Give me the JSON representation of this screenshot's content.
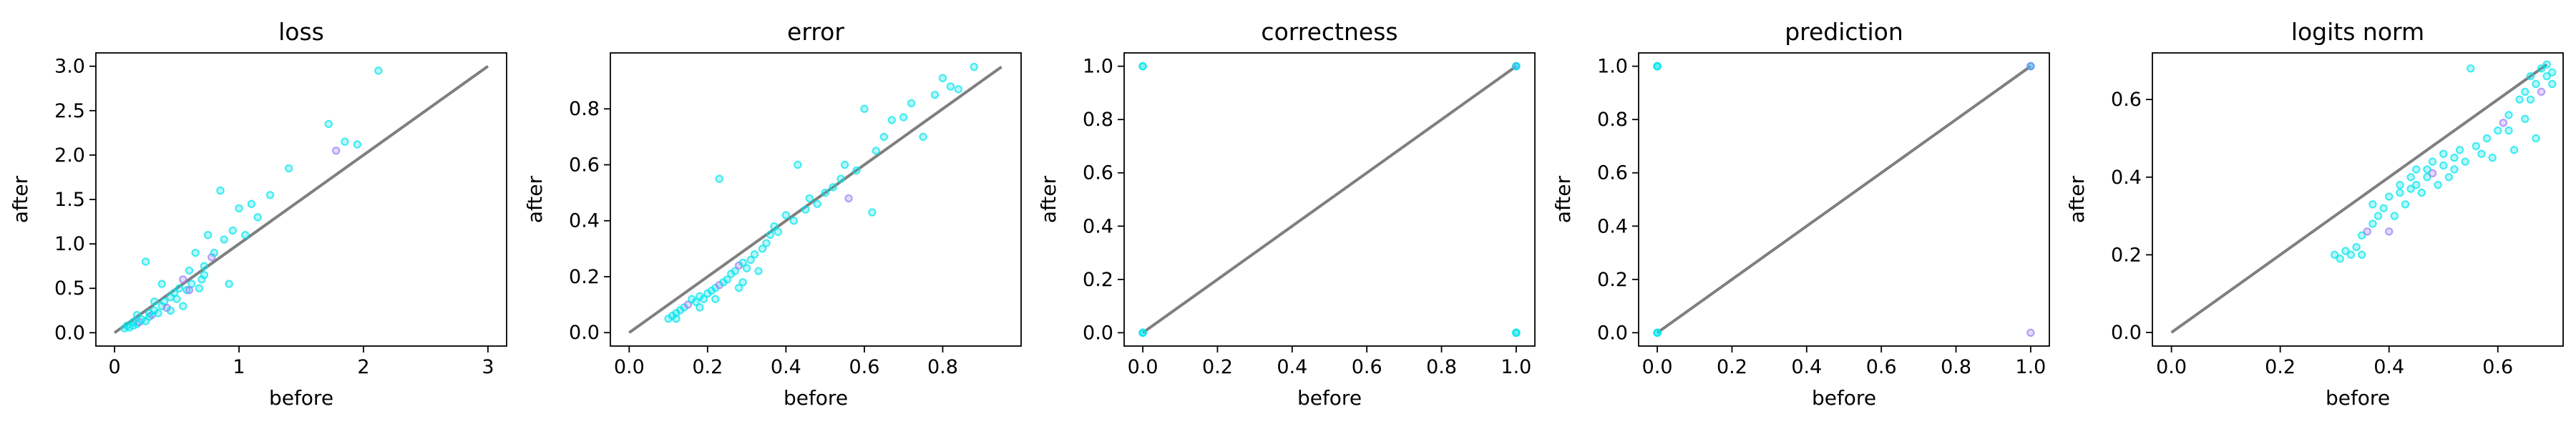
{
  "chart_data": [
    {
      "type": "scatter",
      "title": "loss",
      "xlabel": "before",
      "ylabel": "after",
      "xlim": [
        -0.15,
        3.15
      ],
      "ylim": [
        -0.15,
        3.15
      ],
      "xticks": [
        0,
        1,
        2,
        3
      ],
      "xtick_labels": [
        "0",
        "1",
        "2",
        "3"
      ],
      "yticks": [
        0,
        0.5,
        1,
        1.5,
        2,
        2.5,
        3
      ],
      "ytick_labels": [
        "0.0",
        "0.5",
        "1.0",
        "1.5",
        "2.0",
        "2.5",
        "3.0"
      ],
      "diagonal": [
        [
          0,
          0
        ],
        [
          3,
          3
        ]
      ],
      "grid": false,
      "points": [
        [
          0.08,
          0.05,
          0
        ],
        [
          0.12,
          0.06,
          0
        ],
        [
          0.15,
          0.08,
          0
        ],
        [
          0.18,
          0.1,
          0
        ],
        [
          0.2,
          0.12,
          1
        ],
        [
          0.22,
          0.15,
          0
        ],
        [
          0.25,
          0.13,
          0
        ],
        [
          0.28,
          0.18,
          0
        ],
        [
          0.3,
          0.2,
          1
        ],
        [
          0.32,
          0.25,
          0
        ],
        [
          0.35,
          0.22,
          0
        ],
        [
          0.38,
          0.3,
          0
        ],
        [
          0.4,
          0.35,
          0
        ],
        [
          0.42,
          0.28,
          1
        ],
        [
          0.45,
          0.4,
          0
        ],
        [
          0.48,
          0.45,
          0
        ],
        [
          0.5,
          0.38,
          0
        ],
        [
          0.52,
          0.5,
          0
        ],
        [
          0.55,
          0.6,
          1
        ],
        [
          0.58,
          0.48,
          0
        ],
        [
          0.6,
          0.7,
          0
        ],
        [
          0.62,
          0.55,
          0
        ],
        [
          0.65,
          0.9,
          0
        ],
        [
          0.68,
          0.5,
          0
        ],
        [
          0.7,
          0.6,
          0
        ],
        [
          0.72,
          0.75,
          0
        ],
        [
          0.75,
          1.1,
          0
        ],
        [
          0.78,
          0.85,
          1
        ],
        [
          0.8,
          0.9,
          0
        ],
        [
          0.85,
          1.6,
          0
        ],
        [
          0.88,
          1.05,
          0
        ],
        [
          0.92,
          0.55,
          0
        ],
        [
          0.95,
          1.15,
          0
        ],
        [
          1.0,
          1.4,
          0
        ],
        [
          1.05,
          1.1,
          0
        ],
        [
          1.1,
          1.45,
          0
        ],
        [
          1.15,
          1.3,
          0
        ],
        [
          1.25,
          1.55,
          0
        ],
        [
          1.4,
          1.85,
          0
        ],
        [
          1.72,
          2.35,
          0
        ],
        [
          1.78,
          2.05,
          1
        ],
        [
          1.85,
          2.15,
          0
        ],
        [
          1.95,
          2.12,
          0
        ],
        [
          2.12,
          2.95,
          0
        ],
        [
          0.25,
          0.8,
          0
        ],
        [
          0.32,
          0.35,
          0
        ],
        [
          0.38,
          0.55,
          0
        ],
        [
          0.18,
          0.2,
          0
        ],
        [
          0.15,
          0.12,
          0
        ],
        [
          0.1,
          0.08,
          0
        ],
        [
          0.55,
          0.3,
          0
        ],
        [
          0.45,
          0.25,
          0
        ],
        [
          0.6,
          0.48,
          1
        ],
        [
          0.72,
          0.65,
          0
        ],
        [
          0.28,
          0.22,
          0
        ]
      ]
    },
    {
      "type": "scatter",
      "title": "error",
      "xlabel": "before",
      "ylabel": "after",
      "xlim": [
        -0.048,
        1.0
      ],
      "ylim": [
        -0.048,
        1.0
      ],
      "xticks": [
        0,
        0.2,
        0.4,
        0.6,
        0.8
      ],
      "xtick_labels": [
        "0.0",
        "0.2",
        "0.4",
        "0.6",
        "0.8"
      ],
      "yticks": [
        0,
        0.2,
        0.4,
        0.6,
        0.8
      ],
      "ytick_labels": [
        "0.0",
        "0.2",
        "0.4",
        "0.6",
        "0.8"
      ],
      "diagonal": [
        [
          0,
          0
        ],
        [
          0.95,
          0.95
        ]
      ],
      "grid": false,
      "points": [
        [
          0.1,
          0.05,
          0
        ],
        [
          0.11,
          0.06,
          0
        ],
        [
          0.12,
          0.07,
          0
        ],
        [
          0.13,
          0.08,
          0
        ],
        [
          0.14,
          0.09,
          0
        ],
        [
          0.15,
          0.1,
          1
        ],
        [
          0.16,
          0.12,
          0
        ],
        [
          0.17,
          0.11,
          0
        ],
        [
          0.18,
          0.13,
          0
        ],
        [
          0.19,
          0.12,
          0
        ],
        [
          0.2,
          0.14,
          0
        ],
        [
          0.21,
          0.15,
          0
        ],
        [
          0.22,
          0.16,
          0
        ],
        [
          0.23,
          0.17,
          1
        ],
        [
          0.24,
          0.18,
          0
        ],
        [
          0.25,
          0.19,
          0
        ],
        [
          0.26,
          0.21,
          0
        ],
        [
          0.27,
          0.22,
          0
        ],
        [
          0.28,
          0.24,
          1
        ],
        [
          0.29,
          0.25,
          0
        ],
        [
          0.3,
          0.23,
          0
        ],
        [
          0.31,
          0.26,
          0
        ],
        [
          0.32,
          0.28,
          0
        ],
        [
          0.33,
          0.22,
          0
        ],
        [
          0.34,
          0.3,
          0
        ],
        [
          0.35,
          0.32,
          0
        ],
        [
          0.36,
          0.35,
          0
        ],
        [
          0.37,
          0.38,
          0
        ],
        [
          0.38,
          0.36,
          0
        ],
        [
          0.4,
          0.42,
          0
        ],
        [
          0.42,
          0.4,
          0
        ],
        [
          0.43,
          0.6,
          0
        ],
        [
          0.45,
          0.44,
          0
        ],
        [
          0.46,
          0.48,
          0
        ],
        [
          0.48,
          0.46,
          0
        ],
        [
          0.5,
          0.5,
          0
        ],
        [
          0.52,
          0.52,
          0
        ],
        [
          0.54,
          0.55,
          0
        ],
        [
          0.55,
          0.6,
          0
        ],
        [
          0.56,
          0.48,
          1
        ],
        [
          0.58,
          0.58,
          0
        ],
        [
          0.6,
          0.8,
          0
        ],
        [
          0.62,
          0.43,
          0
        ],
        [
          0.63,
          0.65,
          0
        ],
        [
          0.65,
          0.7,
          0
        ],
        [
          0.67,
          0.76,
          0
        ],
        [
          0.7,
          0.77,
          0
        ],
        [
          0.72,
          0.82,
          0
        ],
        [
          0.75,
          0.7,
          0
        ],
        [
          0.78,
          0.85,
          0
        ],
        [
          0.8,
          0.91,
          0
        ],
        [
          0.82,
          0.88,
          0
        ],
        [
          0.84,
          0.87,
          0
        ],
        [
          0.88,
          0.95,
          0
        ],
        [
          0.23,
          0.55,
          0
        ],
        [
          0.29,
          0.18,
          0
        ],
        [
          0.28,
          0.16,
          0
        ],
        [
          0.12,
          0.05,
          0
        ],
        [
          0.18,
          0.09,
          0
        ],
        [
          0.22,
          0.12,
          0
        ]
      ]
    },
    {
      "type": "scatter",
      "title": "correctness",
      "xlabel": "before",
      "ylabel": "after",
      "xlim": [
        -0.05,
        1.05
      ],
      "ylim": [
        -0.05,
        1.05
      ],
      "xticks": [
        0,
        0.2,
        0.4,
        0.6,
        0.8,
        1
      ],
      "xtick_labels": [
        "0.0",
        "0.2",
        "0.4",
        "0.6",
        "0.8",
        "1.0"
      ],
      "yticks": [
        0,
        0.2,
        0.4,
        0.6,
        0.8,
        1
      ],
      "ytick_labels": [
        "0.0",
        "0.2",
        "0.4",
        "0.6",
        "0.8",
        "1.0"
      ],
      "diagonal": [
        [
          0,
          0
        ],
        [
          1,
          1
        ]
      ],
      "grid": false,
      "points": [
        [
          0,
          0,
          0
        ],
        [
          0,
          0,
          0
        ],
        [
          0,
          0,
          0
        ],
        [
          0,
          1,
          0
        ],
        [
          0,
          1,
          0
        ],
        [
          1,
          0,
          0
        ],
        [
          1,
          0,
          0
        ],
        [
          1,
          0,
          0
        ],
        [
          1,
          1,
          0
        ],
        [
          1,
          1,
          0
        ],
        [
          1,
          1,
          1
        ],
        [
          1,
          1,
          0
        ]
      ]
    },
    {
      "type": "scatter",
      "title": "prediction",
      "xlabel": "before",
      "ylabel": "after",
      "xlim": [
        -0.05,
        1.05
      ],
      "ylim": [
        -0.05,
        1.05
      ],
      "xticks": [
        0,
        0.2,
        0.4,
        0.6,
        0.8,
        1
      ],
      "xtick_labels": [
        "0.0",
        "0.2",
        "0.4",
        "0.6",
        "0.8",
        "1.0"
      ],
      "yticks": [
        0,
        0.2,
        0.4,
        0.6,
        0.8,
        1
      ],
      "ytick_labels": [
        "0.0",
        "0.2",
        "0.4",
        "0.6",
        "0.8",
        "1.0"
      ],
      "diagonal": [
        [
          0,
          0
        ],
        [
          1,
          1
        ]
      ],
      "grid": false,
      "points": [
        [
          0,
          0,
          0
        ],
        [
          0,
          0,
          0
        ],
        [
          0,
          0,
          0
        ],
        [
          0,
          1,
          0
        ],
        [
          0,
          1,
          0
        ],
        [
          0,
          1,
          0
        ],
        [
          1,
          1,
          0
        ],
        [
          1,
          1,
          0
        ],
        [
          1,
          1,
          1
        ],
        [
          1,
          0,
          1
        ]
      ]
    },
    {
      "type": "scatter",
      "title": "logits norm",
      "xlabel": "before",
      "ylabel": "after",
      "xlim": [
        -0.035,
        0.72
      ],
      "ylim": [
        -0.035,
        0.72
      ],
      "xticks": [
        0,
        0.2,
        0.4,
        0.6
      ],
      "xtick_labels": [
        "0.0",
        "0.2",
        "0.4",
        "0.6"
      ],
      "yticks": [
        0,
        0.2,
        0.4,
        0.6
      ],
      "ytick_labels": [
        "0.0",
        "0.2",
        "0.4",
        "0.6"
      ],
      "diagonal": [
        [
          0,
          0
        ],
        [
          0.69,
          0.69
        ]
      ],
      "grid": false,
      "points": [
        [
          0.3,
          0.2,
          0
        ],
        [
          0.31,
          0.19,
          0
        ],
        [
          0.32,
          0.21,
          0
        ],
        [
          0.33,
          0.2,
          0
        ],
        [
          0.34,
          0.22,
          0
        ],
        [
          0.35,
          0.2,
          0
        ],
        [
          0.35,
          0.25,
          0
        ],
        [
          0.36,
          0.26,
          1
        ],
        [
          0.37,
          0.28,
          0
        ],
        [
          0.37,
          0.33,
          0
        ],
        [
          0.38,
          0.3,
          0
        ],
        [
          0.39,
          0.32,
          0
        ],
        [
          0.4,
          0.26,
          1
        ],
        [
          0.4,
          0.35,
          0
        ],
        [
          0.41,
          0.3,
          0
        ],
        [
          0.42,
          0.36,
          0
        ],
        [
          0.42,
          0.38,
          0
        ],
        [
          0.43,
          0.33,
          0
        ],
        [
          0.44,
          0.4,
          0
        ],
        [
          0.45,
          0.38,
          0
        ],
        [
          0.45,
          0.42,
          0
        ],
        [
          0.46,
          0.36,
          0
        ],
        [
          0.47,
          0.4,
          0
        ],
        [
          0.48,
          0.44,
          0
        ],
        [
          0.48,
          0.41,
          1
        ],
        [
          0.49,
          0.38,
          0
        ],
        [
          0.5,
          0.43,
          0
        ],
        [
          0.5,
          0.46,
          0
        ],
        [
          0.51,
          0.4,
          0
        ],
        [
          0.52,
          0.45,
          0
        ],
        [
          0.52,
          0.42,
          0
        ],
        [
          0.53,
          0.47,
          0
        ],
        [
          0.54,
          0.44,
          0
        ],
        [
          0.55,
          0.68,
          0
        ],
        [
          0.56,
          0.48,
          0
        ],
        [
          0.57,
          0.46,
          0
        ],
        [
          0.58,
          0.5,
          0
        ],
        [
          0.59,
          0.45,
          0
        ],
        [
          0.6,
          0.52,
          0
        ],
        [
          0.61,
          0.54,
          1
        ],
        [
          0.62,
          0.56,
          0
        ],
        [
          0.62,
          0.52,
          0
        ],
        [
          0.63,
          0.47,
          0
        ],
        [
          0.64,
          0.6,
          0
        ],
        [
          0.65,
          0.62,
          0
        ],
        [
          0.65,
          0.55,
          0
        ],
        [
          0.66,
          0.66,
          0
        ],
        [
          0.67,
          0.64,
          0
        ],
        [
          0.67,
          0.5,
          0
        ],
        [
          0.68,
          0.68,
          0
        ],
        [
          0.68,
          0.62,
          1
        ],
        [
          0.69,
          0.66,
          0
        ],
        [
          0.69,
          0.69,
          0
        ],
        [
          0.7,
          0.64,
          0
        ],
        [
          0.7,
          0.67,
          0
        ],
        [
          0.66,
          0.6,
          0
        ],
        [
          0.44,
          0.37,
          0
        ],
        [
          0.47,
          0.42,
          0
        ]
      ]
    }
  ],
  "colors": {
    "diagonal": "#7f7f7f",
    "point_main": "#00e5ee",
    "point_alt": "#9b7cf5",
    "axes": "#000000"
  }
}
